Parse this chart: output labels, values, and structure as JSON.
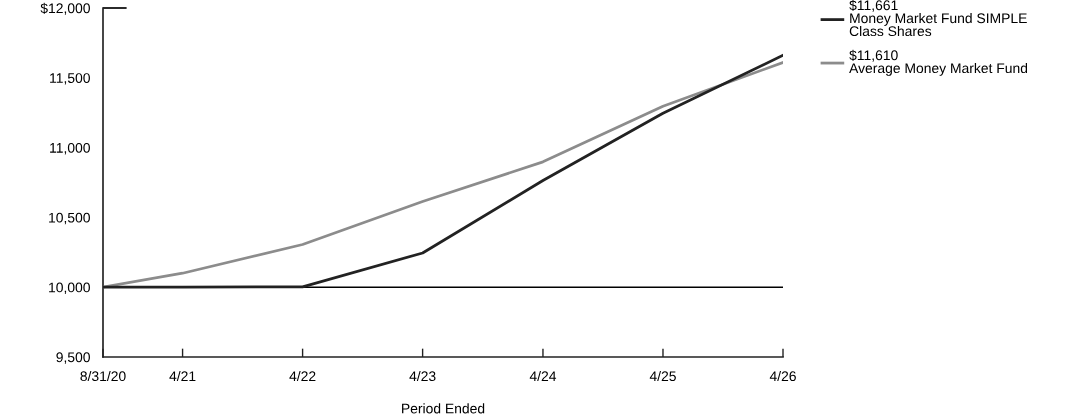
{
  "chart_data": {
    "type": "line",
    "xlabel": "Period Ended",
    "x": [
      "2020-08-31",
      "2021-04-30",
      "2022-04-30",
      "2023-04-30",
      "2024-04-30",
      "2025-04-30",
      "2026-04-30"
    ],
    "series": [
      {
        "name": "$11,661\nMoney Market Fund SIMPLE\nClass Shares",
        "color": "#222222",
        "values": [
          10000,
          10001,
          10002,
          10245,
          10764,
          11246,
          11661
        ]
      },
      {
        "name": "$11,610\nAverage Money Market Fund",
        "color": "#8c8c8c",
        "values": [
          10000,
          10100,
          10306,
          10614,
          10898,
          11296,
          11610
        ]
      }
    ],
    "xlim": [
      "2020-08-31",
      "2026-04-30"
    ],
    "xticks": [
      {
        "value": "2020-08-31",
        "label": "8/31/20"
      },
      {
        "value": "2021-04-30",
        "label": "4/21"
      },
      {
        "value": "2022-04-30",
        "label": "4/22"
      },
      {
        "value": "2023-04-30",
        "label": "4/23"
      },
      {
        "value": "2024-04-30",
        "label": "4/24"
      },
      {
        "value": "2025-04-30",
        "label": "4/25"
      },
      {
        "value": "2026-04-30",
        "label": "4/26"
      }
    ],
    "ylim": [
      9500,
      12000
    ],
    "yticks": [
      {
        "value": 9500,
        "label": "9,500"
      },
      {
        "value": 10000,
        "label": "10,000"
      },
      {
        "value": 10500,
        "label": "10,500"
      },
      {
        "value": 11000,
        "label": "11,000"
      },
      {
        "value": 11500,
        "label": "11,500"
      },
      {
        "value": 12000,
        "label": "$12,000"
      }
    ],
    "ref_lines": [
      {
        "axis": "y",
        "value": 10000,
        "color": "#000000"
      }
    ],
    "grid": false,
    "legend": "top right"
  }
}
